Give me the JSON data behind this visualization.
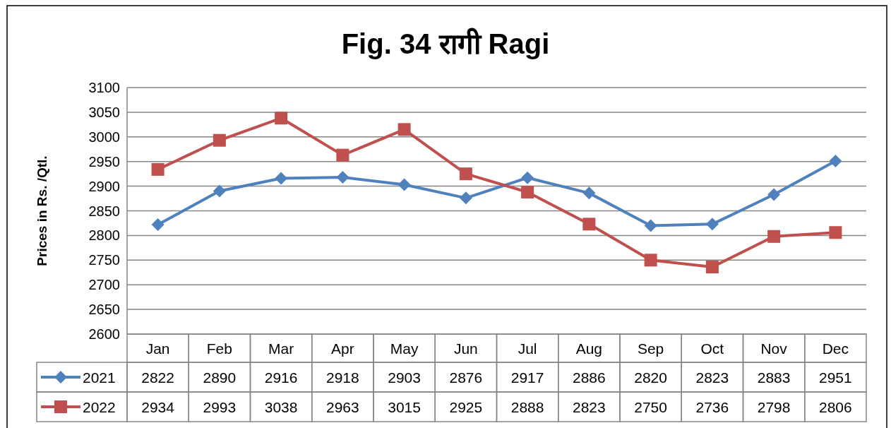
{
  "chart_data": {
    "type": "line",
    "title": "Fig. 34 रागी Ragi",
    "ylabel": "Prices in Rs. /Qtl.",
    "categories": [
      "Jan",
      "Feb",
      "Mar",
      "Apr",
      "May",
      "Jun",
      "Jul",
      "Aug",
      "Sep",
      "Oct",
      "Nov",
      "Dec"
    ],
    "series": [
      {
        "name": "2021",
        "color": "#4f81bd",
        "marker": "diamond",
        "values": [
          2822,
          2890,
          2916,
          2918,
          2903,
          2876,
          2917,
          2886,
          2820,
          2823,
          2883,
          2951
        ]
      },
      {
        "name": "2022",
        "color": "#c0504d",
        "marker": "square",
        "values": [
          2934,
          2993,
          3038,
          2963,
          3015,
          2925,
          2888,
          2823,
          2750,
          2736,
          2798,
          2806
        ]
      }
    ],
    "ylim": [
      2600,
      3100
    ],
    "yticks": [
      2600,
      2650,
      2700,
      2750,
      2800,
      2850,
      2900,
      2950,
      3000,
      3050,
      3100
    ],
    "grid": "y",
    "legend": "bottom",
    "data_labels": true,
    "line_style": "solid"
  }
}
